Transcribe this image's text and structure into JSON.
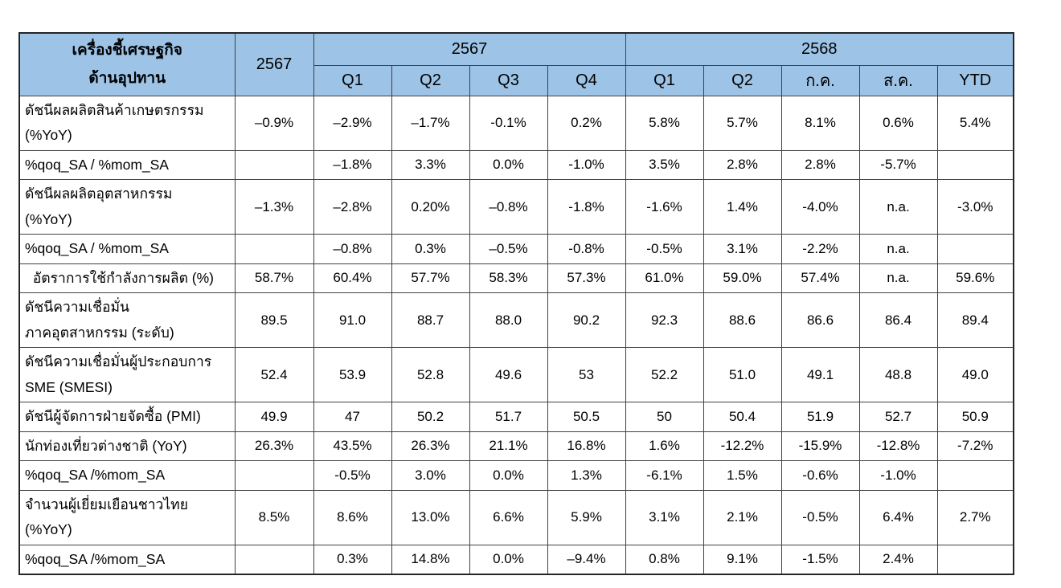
{
  "colors": {
    "header_fill": "#9DC3E6",
    "grid_border": "#404040",
    "outer_border": "#262626",
    "text": "#000000",
    "background": "#ffffff"
  },
  "table": {
    "header": {
      "label_title": "เครื่องชี้เศรษฐกิจ\nด้านอุปทาน",
      "annual_col": "2567",
      "groups": [
        {
          "label": "2567",
          "cols": [
            "Q1",
            "Q2",
            "Q3",
            "Q4"
          ]
        },
        {
          "label": "2568",
          "cols": [
            "Q1",
            "Q2",
            "ก.ค.",
            "ส.ค.",
            "YTD"
          ]
        }
      ]
    },
    "rows": [
      {
        "label": "ดัชนีผลผลิตสินค้าเกษตรกรรม\n(%YoY)",
        "values": [
          "–0.9%",
          "–2.9%",
          "–1.7%",
          "-0.1%",
          "0.2%",
          "5.8%",
          "5.7%",
          "8.1%",
          "0.6%",
          "5.4%"
        ]
      },
      {
        "label": "%qoq_SA / %mom_SA",
        "values": [
          "",
          "–1.8%",
          "3.3%",
          "0.0%",
          "-1.0%",
          "3.5%",
          "2.8%",
          "2.8%",
          "-5.7%",
          ""
        ]
      },
      {
        "label": "ดัชนีผลผลิตอุตสาหกรรม\n(%YoY)",
        "values": [
          "–1.3%",
          "–2.8%",
          "0.20%",
          "–0.8%",
          "-1.8%",
          "-1.6%",
          "1.4%",
          "-4.0%",
          "n.a.",
          "-3.0%"
        ]
      },
      {
        "label": "%qoq_SA / %mom_SA",
        "values": [
          "",
          "–0.8%",
          "0.3%",
          "–0.5%",
          "-0.8%",
          "-0.5%",
          "3.1%",
          "-2.2%",
          "n.a.",
          ""
        ]
      },
      {
        "label": "  อัตราการใช้กำลังการผลิต (%)",
        "values": [
          "58.7%",
          "60.4%",
          "57.7%",
          "58.3%",
          "57.3%",
          "61.0%",
          "59.0%",
          "57.4%",
          "n.a.",
          "59.6%"
        ]
      },
      {
        "label": "ดัชนีความเชื่อมั่น\nภาคอุตสาหกรรม (ระดับ)",
        "values": [
          "89.5",
          "91.0",
          "88.7",
          "88.0",
          "90.2",
          "92.3",
          "88.6",
          "86.6",
          "86.4",
          "89.4"
        ]
      },
      {
        "label": "ดัชนีความเชื่อมั่นผู้ประกอบการ\nSME (SMESI)",
        "values": [
          "52.4",
          "53.9",
          "52.8",
          "49.6",
          "53",
          "52.2",
          "51.0",
          "49.1",
          "48.8",
          "49.0"
        ]
      },
      {
        "label": "ดัชนีผู้จัดการฝ่ายจัดซื้อ (PMI)",
        "values": [
          "49.9",
          "47",
          "50.2",
          "51.7",
          "50.5",
          "50",
          "50.4",
          "51.9",
          "52.7",
          "50.9"
        ]
      },
      {
        "label": "นักท่องเที่ยวต่างชาติ (YoY)",
        "values": [
          "26.3%",
          "43.5%",
          "26.3%",
          "21.1%",
          "16.8%",
          "1.6%",
          "-12.2%",
          "-15.9%",
          "-12.8%",
          "-7.2%"
        ]
      },
      {
        "label": "%qoq_SA /%mom_SA",
        "values": [
          "",
          "-0.5%",
          "3.0%",
          "0.0%",
          "1.3%",
          "-6.1%",
          "1.5%",
          "-0.6%",
          "-1.0%",
          ""
        ]
      },
      {
        "label": "จำนวนผู้เยี่ยมเยือนชาวไทย\n(%YoY)",
        "values": [
          "8.5%",
          "8.6%",
          "13.0%",
          "6.6%",
          "5.9%",
          "3.1%",
          "2.1%",
          "-0.5%",
          "6.4%",
          "2.7%"
        ]
      },
      {
        "label": "%qoq_SA /%mom_SA",
        "values": [
          "",
          "0.3%",
          "14.8%",
          "0.0%",
          "–9.4%",
          "0.8%",
          "9.1%",
          "-1.5%",
          "2.4%",
          ""
        ]
      }
    ]
  }
}
